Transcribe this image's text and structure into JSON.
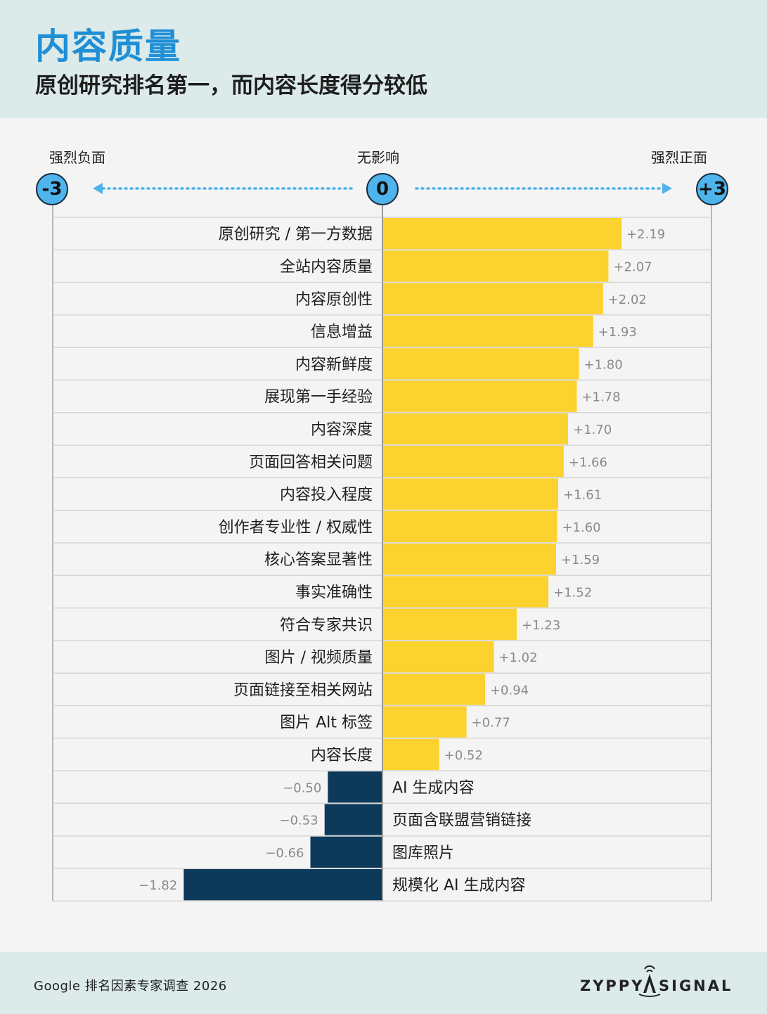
{
  "header": {
    "title": "内容质量",
    "subtitle": "原创研究排名第一，而内容长度得分较低"
  },
  "axis": {
    "left_label": "强烈负面",
    "center_label": "无影响",
    "right_label": "强烈正面",
    "left_value": "-3",
    "center_value": "0",
    "right_value": "+3",
    "arrow_color": "#4fb3ec"
  },
  "chart_data": {
    "type": "bar",
    "orientation": "horizontal",
    "xlim": [
      -3,
      3
    ],
    "positive_color": "#fbd22e",
    "negative_color": "#0d3a5a",
    "categories": [
      "原创研究 / 第一方数据",
      "全站内容质量",
      "内容原创性",
      "信息增益",
      "内容新鲜度",
      "展现第一手经验",
      "内容深度",
      "页面回答相关问题",
      "内容投入程度",
      "创作者专业性 / 权威性",
      "核心答案显著性",
      "事实准确性",
      "符合专家共识",
      "图片 / 视频质量",
      "页面链接至相关网站",
      "图片 Alt 标签",
      "内容长度",
      "AI 生成内容",
      "页面含联盟营销链接",
      "图库照片",
      "规模化 AI 生成内容"
    ],
    "values": [
      2.19,
      2.07,
      2.02,
      1.93,
      1.8,
      1.78,
      1.7,
      1.66,
      1.61,
      1.6,
      1.59,
      1.52,
      1.23,
      1.02,
      0.94,
      0.77,
      0.52,
      -0.5,
      -0.53,
      -0.66,
      -1.82
    ],
    "value_labels": [
      "+2.19",
      "+2.07",
      "+2.02",
      "+1.93",
      "+1.80",
      "+1.78",
      "+1.70",
      "+1.66",
      "+1.61",
      "+1.60",
      "+1.59",
      "+1.52",
      "+1.23",
      "+1.02",
      "+0.94",
      "+0.77",
      "+0.52",
      "−0.50",
      "−0.53",
      "−0.66",
      "−1.82"
    ]
  },
  "footer": {
    "source": "Google 排名因素专家调查 2026",
    "brand_left": "ZYPPY",
    "brand_right": "SIGNAL"
  }
}
